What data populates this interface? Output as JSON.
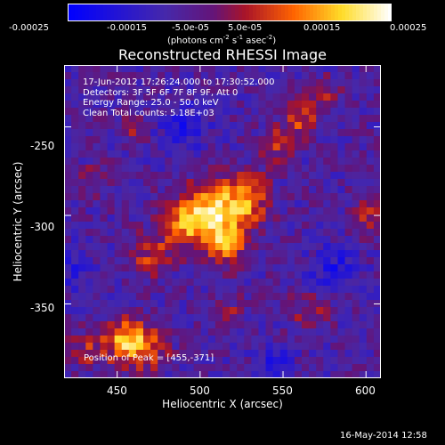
{
  "colors": {
    "background": "#000000",
    "foreground": "#ffffff",
    "colormap": "blue-purple-red-orange-yellow-white"
  },
  "colorbar": {
    "ticks": [
      "-0.00025",
      "-0.00015",
      "-5.0e-05",
      "5.0e-05",
      "0.00015",
      "0.00025"
    ],
    "unit_label": "(photons cm",
    "unit_sup1": "-2",
    "unit_mid": " s",
    "unit_sup2": "-1",
    "unit_mid2": " asec",
    "unit_sup3": "-2",
    "unit_end": ")"
  },
  "chart_data": {
    "type": "heatmap",
    "title": "Reconstructed RHESSI Image",
    "xlabel": "Heliocentric X (arcsec)",
    "ylabel": "Heliocentric Y (arcsec)",
    "xlim": [
      418,
      609
    ],
    "ylim": [
      -392,
      -215
    ],
    "x_ticks": [
      "450",
      "500",
      "550",
      "600"
    ],
    "y_ticks": [
      "-250",
      "-300",
      "-350"
    ],
    "color_range": [
      -0.00025,
      0.00025
    ],
    "annotations": [
      "17-Jun-2012 17:26:24.000 to 17:30:52.000",
      "Detectors: 3F 5F 6F 7F 8F 9F, Att 0",
      "Energy Range: 25.0 - 50.0 keV",
      "Clean    Total counts: 5.18E+03",
      "Position of Peak = [455,-371]"
    ],
    "sources": [
      {
        "x": 510,
        "y": -299,
        "amp": 0.00025,
        "sigma": 13
      },
      {
        "x": 490,
        "y": -305,
        "amp": 0.00016,
        "sigma": 10
      },
      {
        "x": 530,
        "y": -290,
        "amp": 0.00015,
        "sigma": 9
      },
      {
        "x": 515,
        "y": -318,
        "amp": 0.00013,
        "sigma": 8
      },
      {
        "x": 470,
        "y": -323,
        "amp": 0.00012,
        "sigma": 8
      },
      {
        "x": 455,
        "y": -371,
        "amp": 0.00024,
        "sigma": 9
      },
      {
        "x": 470,
        "y": -376,
        "amp": 0.00012,
        "sigma": 8
      },
      {
        "x": 430,
        "y": -376,
        "amp": 0.0001,
        "sigma": 7
      },
      {
        "x": 560,
        "y": -245,
        "amp": 0.00014,
        "sigma": 7
      },
      {
        "x": 575,
        "y": -232,
        "amp": 0.00012,
        "sigma": 6
      },
      {
        "x": 545,
        "y": -260,
        "amp": 0.0001,
        "sigma": 7
      },
      {
        "x": 460,
        "y": -252,
        "amp": 0.00012,
        "sigma": 5
      },
      {
        "x": 600,
        "y": -300,
        "amp": 9e-05,
        "sigma": 7
      },
      {
        "x": 565,
        "y": -355,
        "amp": 9e-05,
        "sigma": 8
      },
      {
        "x": 515,
        "y": -355,
        "amp": 8e-05,
        "sigma": 7
      },
      {
        "x": 435,
        "y": -280,
        "amp": 6e-05,
        "sigma": 7
      }
    ],
    "background_level": -8e-05,
    "noise_amplitude": 6e-05,
    "cold_spots": [
      {
        "x": 490,
        "y": -250,
        "amp": -0.0001,
        "sigma": 10
      },
      {
        "x": 580,
        "y": -330,
        "amp": -9e-05,
        "sigma": 10
      },
      {
        "x": 545,
        "y": -385,
        "amp": -8e-05,
        "sigma": 8
      },
      {
        "x": 425,
        "y": -330,
        "amp": -6e-05,
        "sigma": 8
      }
    ]
  },
  "footer": {
    "timestamp": "16-May-2014 12:58"
  }
}
